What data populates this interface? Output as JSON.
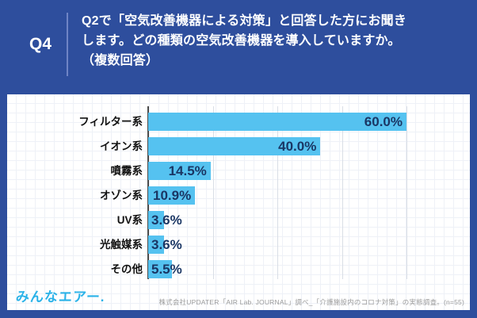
{
  "header": {
    "question_label": "Q4",
    "title": "Q2で「空気改善機器による対策」と回答した方にお聞き\nします。どの種類の空気改善機器を導入していますか。\n（複数回答）"
  },
  "chart_data": {
    "type": "bar",
    "orientation": "horizontal",
    "title": "どの種類の空気改善機器を導入していますか（複数回答）",
    "categories": [
      "フィルター系",
      "イオン系",
      "噴霧系",
      "オゾン系",
      "UV系",
      "光触媒系",
      "その他"
    ],
    "values": [
      60.0,
      40.0,
      14.5,
      10.9,
      3.6,
      3.6,
      5.5
    ],
    "value_labels": [
      "60.0%",
      "40.0%",
      "14.5%",
      "10.9%",
      "3.6%",
      "3.6%",
      "5.5%"
    ],
    "unit": "%",
    "xlim": [
      0,
      75
    ],
    "gridline_step": 15,
    "grid": true,
    "legend": "none",
    "bar_color": "#55c2f0",
    "value_label_color": "#1a3664",
    "category_label_color": "#111111"
  },
  "footer": {
    "logo_text": "みんなエアー.",
    "source_text": "株式会社UPDATER「AIR Lab. JOURNAL」調べ_「介護施設内のコロナ対策」の実態調査。(n=55)"
  },
  "colors": {
    "background_blue": "#2e4e9d",
    "panel_white": "#ffffff",
    "bar_blue": "#55c2f0",
    "logo_blue": "#2ab2e8",
    "source_gray": "#9b9b9b"
  }
}
